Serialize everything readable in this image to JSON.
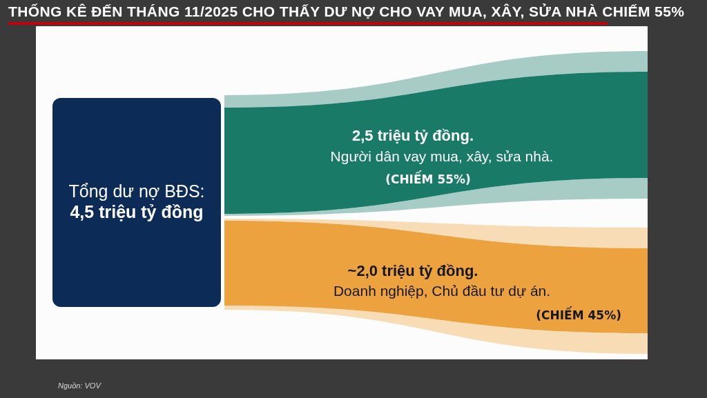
{
  "chart_data": {
    "type": "other",
    "title": "THỐNG KÊ ĐẾN THÁNG 11/2025 CHO THẤY DƯ NỢ CHO VAY MUA, XÂY, SỬA NHÀ CHIẾM 55%",
    "categories": [
      "Người dân vay mua, xây, sửa nhà.",
      "Doanh nghiệp, Chủ đầu tư dự án."
    ],
    "values": [
      2.5,
      2.0
    ],
    "value_labels": [
      "2,5 triệu tỷ đồng.",
      "~2,0 triệu tỷ đồng."
    ],
    "colors": [
      "#187a67",
      "#eca33f"
    ],
    "annotations": [
      "Tổng dư nợ BĐS:",
      "4,5 triệu tỷ đồng",
      "(CHIẾM 55%)",
      "(CHIẾM 45%)",
      "Nguồn: VOV"
    ]
  }
}
